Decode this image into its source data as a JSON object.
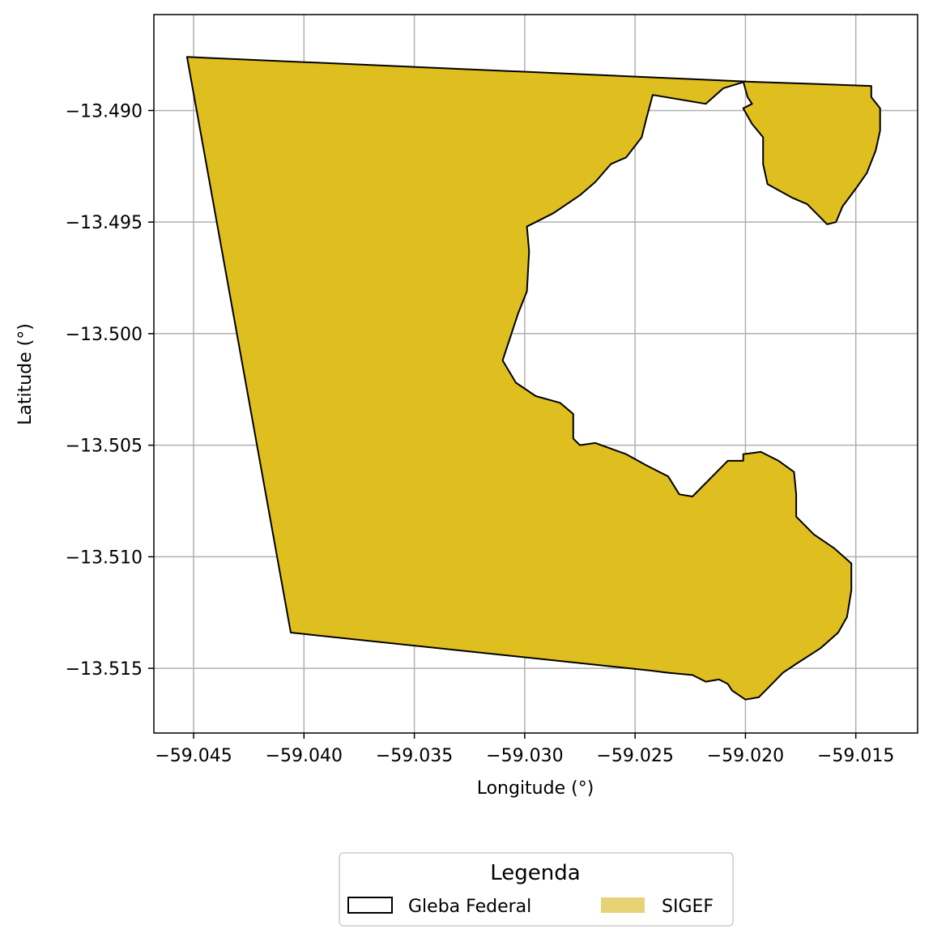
{
  "chart_data": {
    "type": "map",
    "xlabel": "Longitude (°)",
    "ylabel": "Latitude (°)",
    "xlim": [
      -59.0468,
      -59.0122
    ],
    "ylim": [
      -13.5179,
      -13.4857
    ],
    "grid": true,
    "x_ticks": [
      {
        "value": -59.045,
        "label": "−59.045"
      },
      {
        "value": -59.04,
        "label": "−59.040"
      },
      {
        "value": -59.035,
        "label": "−59.035"
      },
      {
        "value": -59.03,
        "label": "−59.030"
      },
      {
        "value": -59.025,
        "label": "−59.025"
      },
      {
        "value": -59.02,
        "label": "−59.020"
      },
      {
        "value": -59.015,
        "label": "−59.015"
      }
    ],
    "y_ticks": [
      {
        "value": -13.49,
        "label": "−13.490"
      },
      {
        "value": -13.495,
        "label": "−13.495"
      },
      {
        "value": -13.5,
        "label": "−13.500"
      },
      {
        "value": -13.505,
        "label": "−13.505"
      },
      {
        "value": -13.51,
        "label": "−13.510"
      },
      {
        "value": -13.515,
        "label": "−13.515"
      }
    ],
    "layers": [
      {
        "name": "SIGEF",
        "fill": "#dfbe20",
        "stroke": "#000000",
        "polygons": [
          [
            [
              -59.0453,
              -13.4876
            ],
            [
              -59.02,
              -13.4887
            ],
            [
              -59.021,
              -13.489
            ],
            [
              -59.0218,
              -13.4897
            ],
            [
              -59.0242,
              -13.4893
            ],
            [
              -59.0245,
              -13.4904
            ],
            [
              -59.0247,
              -13.4912
            ],
            [
              -59.0254,
              -13.4921
            ],
            [
              -59.0261,
              -13.4924
            ],
            [
              -59.0268,
              -13.4932
            ],
            [
              -59.0275,
              -13.4938
            ],
            [
              -59.0287,
              -13.4946
            ],
            [
              -59.0299,
              -13.4952
            ],
            [
              -59.0298,
              -13.4963
            ],
            [
              -59.0299,
              -13.4981
            ],
            [
              -59.0303,
              -13.4991
            ],
            [
              -59.031,
              -13.5012
            ],
            [
              -59.0304,
              -13.5022
            ],
            [
              -59.0295,
              -13.5028
            ],
            [
              -59.0284,
              -13.5031
            ],
            [
              -59.0278,
              -13.5036
            ],
            [
              -59.0278,
              -13.5047
            ],
            [
              -59.0275,
              -13.505
            ],
            [
              -59.0268,
              -13.5049
            ],
            [
              -59.0254,
              -13.5054
            ],
            [
              -59.0245,
              -13.5059
            ],
            [
              -59.0235,
              -13.5064
            ],
            [
              -59.023,
              -13.5072
            ],
            [
              -59.0224,
              -13.5073
            ],
            [
              -59.0208,
              -13.5057
            ],
            [
              -59.0201,
              -13.5057
            ],
            [
              -59.0201,
              -13.5054
            ],
            [
              -59.0193,
              -13.5053
            ],
            [
              -59.0185,
              -13.5057
            ],
            [
              -59.0178,
              -13.5062
            ],
            [
              -59.0177,
              -13.5072
            ],
            [
              -59.0177,
              -13.5082
            ],
            [
              -59.0169,
              -13.509
            ],
            [
              -59.016,
              -13.5096
            ],
            [
              -59.0152,
              -13.5103
            ],
            [
              -59.0152,
              -13.5115
            ],
            [
              -59.0154,
              -13.5127
            ],
            [
              -59.0158,
              -13.5134
            ],
            [
              -59.0166,
              -13.5141
            ],
            [
              -59.0177,
              -13.5148
            ],
            [
              -59.0183,
              -13.5152
            ],
            [
              -59.0189,
              -13.5158
            ],
            [
              -59.0194,
              -13.5163
            ],
            [
              -59.02,
              -13.5164
            ],
            [
              -59.0206,
              -13.516
            ],
            [
              -59.0208,
              -13.5157
            ],
            [
              -59.0212,
              -13.5155
            ],
            [
              -59.0218,
              -13.5156
            ],
            [
              -59.0224,
              -13.5153
            ],
            [
              -59.0235,
              -13.5152
            ],
            [
              -59.0243,
              -13.5151
            ],
            [
              -59.0406,
              -13.5134
            ]
          ],
          [
            [
              -59.0201,
              -13.4887
            ],
            [
              -59.0143,
              -13.4889
            ],
            [
              -59.0143,
              -13.4894
            ],
            [
              -59.0139,
              -13.4899
            ],
            [
              -59.0139,
              -13.4909
            ],
            [
              -59.0141,
              -13.4918
            ],
            [
              -59.0145,
              -13.4928
            ],
            [
              -59.015,
              -13.4935
            ],
            [
              -59.0156,
              -13.4943
            ],
            [
              -59.0159,
              -13.495
            ],
            [
              -59.0163,
              -13.4951
            ],
            [
              -59.0172,
              -13.4942
            ],
            [
              -59.0179,
              -13.4939
            ],
            [
              -59.019,
              -13.4933
            ],
            [
              -59.0192,
              -13.4924
            ],
            [
              -59.0192,
              -13.4912
            ],
            [
              -59.0197,
              -13.4906
            ],
            [
              -59.0201,
              -13.4899
            ],
            [
              -59.0197,
              -13.4897
            ],
            [
              -59.0199,
              -13.4894
            ]
          ]
        ]
      },
      {
        "name": "Gleba Federal",
        "fill": "none",
        "stroke": "#000000",
        "polygons": []
      }
    ],
    "legend": {
      "title": "Legenda",
      "placement": "bottom-center",
      "entries": [
        {
          "label": "Gleba Federal",
          "swatch": "outline",
          "color": "#000000"
        },
        {
          "label": "SIGEF",
          "swatch": "fill",
          "color": "#e8d276"
        }
      ]
    }
  }
}
